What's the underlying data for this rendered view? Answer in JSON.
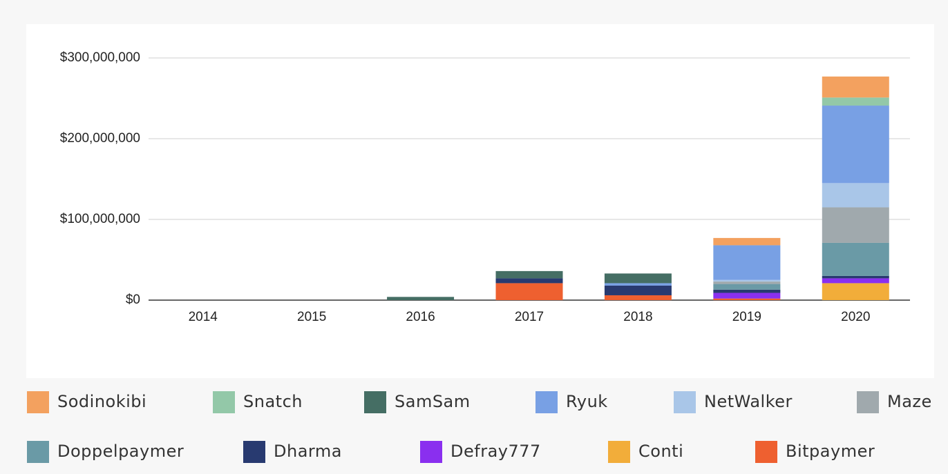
{
  "chart_data": {
    "type": "stacked-bar",
    "categories": [
      "2014",
      "2015",
      "2016",
      "2017",
      "2018",
      "2019",
      "2020"
    ],
    "ylim": [
      0,
      300000000
    ],
    "yticks": [
      {
        "value": 0,
        "label": "$0"
      },
      {
        "value": 100000000,
        "label": "$100,000,000"
      },
      {
        "value": 200000000,
        "label": "$200,000,000"
      },
      {
        "value": 300000000,
        "label": "$300,000,000"
      }
    ],
    "grid": true,
    "legend": "bottom",
    "series": [
      {
        "name": "Sodinokibi",
        "color": "#f3a15f",
        "values": [
          0,
          0,
          0,
          0,
          0,
          9000000,
          26000000
        ]
      },
      {
        "name": "Snatch",
        "color": "#93c8a8",
        "values": [
          0,
          0,
          0,
          0,
          0,
          0,
          10000000
        ]
      },
      {
        "name": "SamSam",
        "color": "#456e64",
        "values": [
          0,
          0,
          4000000,
          9000000,
          12000000,
          0,
          0
        ]
      },
      {
        "name": "Ryuk",
        "color": "#78a0e4",
        "values": [
          0,
          0,
          0,
          0,
          3000000,
          43000000,
          96000000
        ]
      },
      {
        "name": "NetWalker",
        "color": "#a9c6e8",
        "values": [
          0,
          0,
          0,
          0,
          0,
          2000000,
          30000000
        ]
      },
      {
        "name": "Maze",
        "color": "#a0a9ad",
        "values": [
          0,
          0,
          0,
          0,
          0,
          3000000,
          44000000
        ]
      },
      {
        "name": "Doppelpaymer",
        "color": "#6a9aa6",
        "values": [
          0,
          0,
          0,
          0,
          0,
          7000000,
          41000000
        ]
      },
      {
        "name": "Dharma",
        "color": "#283a70",
        "values": [
          0,
          0,
          0,
          6000000,
          12000000,
          4000000,
          3000000
        ]
      },
      {
        "name": "Defray777",
        "color": "#8a2fef",
        "values": [
          0,
          0,
          0,
          0,
          0,
          7000000,
          6000000
        ]
      },
      {
        "name": "Conti",
        "color": "#f2ad3a",
        "values": [
          0,
          0,
          0,
          0,
          0,
          0,
          21000000
        ]
      },
      {
        "name": "Bitpaymer",
        "color": "#ee6030",
        "values": [
          0,
          0,
          0,
          21000000,
          6000000,
          2000000,
          0
        ]
      }
    ]
  }
}
